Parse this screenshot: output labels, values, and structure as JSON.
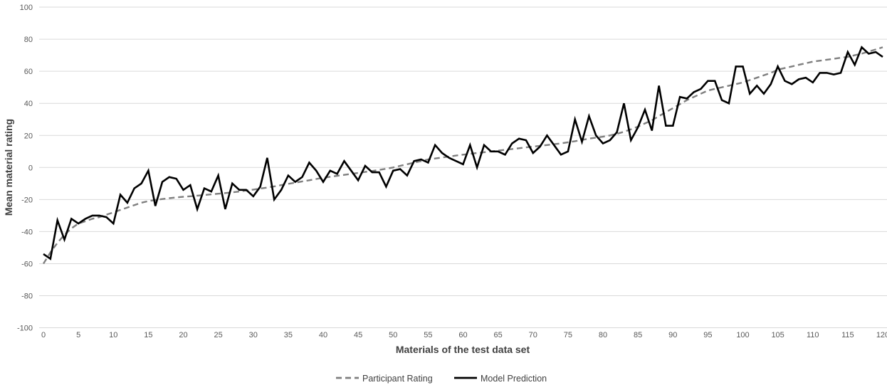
{
  "chart_data": {
    "type": "line",
    "title": "",
    "xlabel": "Materials of the test data set",
    "ylabel": "Mean material rating",
    "xlim": [
      0,
      120
    ],
    "ylim": [
      -100,
      100
    ],
    "grid": "horizontal",
    "legend_position": "bottom-center",
    "x_ticks": [
      0,
      5,
      10,
      15,
      20,
      25,
      30,
      35,
      40,
      45,
      50,
      55,
      60,
      65,
      70,
      75,
      80,
      85,
      90,
      95,
      100,
      105,
      110,
      115,
      120
    ],
    "y_ticks": [
      100,
      80,
      60,
      40,
      20,
      0,
      -20,
      -40,
      -60,
      -80,
      -100
    ],
    "x": [
      0,
      1,
      2,
      3,
      4,
      5,
      6,
      7,
      8,
      9,
      10,
      11,
      12,
      13,
      14,
      15,
      16,
      17,
      18,
      19,
      20,
      21,
      22,
      23,
      24,
      25,
      26,
      27,
      28,
      29,
      30,
      31,
      32,
      33,
      34,
      35,
      36,
      37,
      38,
      39,
      40,
      41,
      42,
      43,
      44,
      45,
      46,
      47,
      48,
      49,
      50,
      51,
      52,
      53,
      54,
      55,
      56,
      57,
      58,
      59,
      60,
      61,
      62,
      63,
      64,
      65,
      66,
      67,
      68,
      69,
      70,
      71,
      72,
      73,
      74,
      75,
      76,
      77,
      78,
      79,
      80,
      81,
      82,
      83,
      84,
      85,
      86,
      87,
      88,
      89,
      90,
      91,
      92,
      93,
      94,
      95,
      96,
      97,
      98,
      99,
      100,
      101,
      102,
      103,
      104,
      105,
      106,
      107,
      108,
      109,
      110,
      111,
      112,
      113,
      114,
      115,
      116,
      117,
      118,
      119,
      120
    ],
    "series": [
      {
        "name": "Participant Rating",
        "style": "dashed",
        "color": "#7f7f7f",
        "values": [
          -60,
          -53,
          -47,
          -42,
          -38,
          -35,
          -33.5,
          -32,
          -31,
          -29.5,
          -28,
          -26.5,
          -25,
          -23.5,
          -22,
          -21,
          -20.3,
          -19.7,
          -19.2,
          -18.7,
          -18.3,
          -18,
          -17.6,
          -17.2,
          -16.8,
          -16.4,
          -16,
          -15.5,
          -15,
          -14.4,
          -13.8,
          -13.2,
          -12.5,
          -11.8,
          -11,
          -10.2,
          -9.5,
          -8.7,
          -8,
          -7.2,
          -6.5,
          -5.8,
          -5.2,
          -4.6,
          -4,
          -3.4,
          -2.8,
          -2.2,
          -1.5,
          -0.8,
          0,
          1,
          2,
          3,
          4,
          5,
          5.6,
          6.2,
          6.8,
          7.4,
          8,
          8.5,
          9,
          9.5,
          10,
          10.5,
          11,
          11.5,
          12,
          12.5,
          13,
          13.5,
          14,
          14.5,
          15,
          15.7,
          16.4,
          17.2,
          18,
          18.6,
          19.2,
          20,
          21,
          22.3,
          23.8,
          25.5,
          27.5,
          29.5,
          32,
          34.5,
          37,
          39.5,
          42,
          44,
          46,
          48,
          49,
          50,
          51,
          52,
          53,
          54.5,
          56,
          57.5,
          59,
          61,
          62,
          63,
          64,
          65,
          66,
          66.6,
          67.2,
          67.8,
          68.4,
          69,
          70,
          71,
          72.3,
          73.6,
          75
        ]
      },
      {
        "name": "Model Prediction",
        "style": "solid",
        "color": "#000000",
        "values": [
          -54,
          -57,
          -33,
          -45,
          -32,
          -35,
          -32,
          -30,
          -30,
          -31,
          -35,
          -17,
          -22,
          -13,
          -10,
          -2,
          -24,
          -9,
          -6,
          -7,
          -14,
          -11,
          -26,
          -13,
          -15,
          -5,
          -26,
          -10,
          -14,
          -14,
          -18,
          -12,
          6,
          -20,
          -14,
          -5,
          -9,
          -6,
          3,
          -2,
          -9,
          -2,
          -4,
          4,
          -2,
          -8,
          1,
          -3,
          -3,
          -12,
          -2,
          -1,
          -5,
          4,
          5,
          3,
          14,
          9,
          6,
          4,
          2,
          14,
          0,
          14,
          10,
          10,
          8,
          15,
          18,
          17,
          9,
          13,
          20,
          14,
          8,
          10,
          30,
          16,
          32,
          20,
          15,
          17,
          22,
          40,
          17,
          25,
          36,
          23,
          51,
          26,
          26,
          44,
          43,
          47,
          49,
          54,
          54,
          42,
          40,
          63,
          63,
          46,
          51,
          46,
          52,
          63,
          54,
          52,
          55,
          56,
          53,
          59,
          59,
          58,
          59,
          72,
          64,
          75,
          71,
          72,
          69
        ]
      }
    ]
  },
  "colors": {
    "gridline": "#d9d9d9",
    "tick_text": "#595959",
    "axis_title_text": "#404040",
    "legend_text": "#404040",
    "background": "#ffffff"
  }
}
